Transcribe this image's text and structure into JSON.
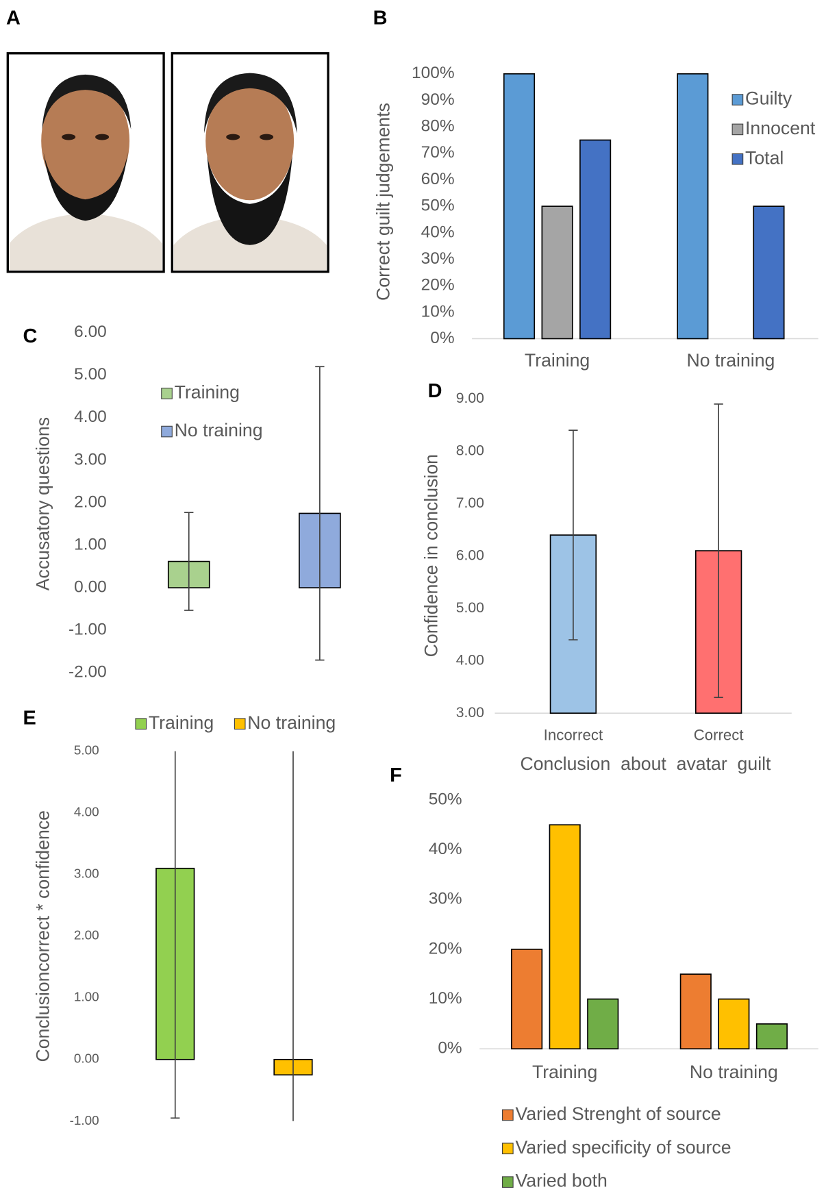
{
  "images": {
    "panel": "A"
  },
  "chart_data": [
    {
      "type": "bar",
      "panel": "B",
      "ylabel": "Correct guilt judgements",
      "categories": [
        "Training",
        "No training"
      ],
      "series": [
        {
          "name": "Guilty",
          "color": "#5b9bd5",
          "values": [
            100,
            100
          ]
        },
        {
          "name": "Innocent",
          "color": "#a5a5a5",
          "values": [
            50,
            0
          ]
        },
        {
          "name": "Total",
          "color": "#4472c4",
          "values": [
            75,
            50
          ]
        }
      ],
      "ylim": [
        0,
        100
      ],
      "yticks": [
        {
          "value": 0,
          "label": "0%"
        },
        {
          "value": 10,
          "label": "10%"
        },
        {
          "value": 20,
          "label": "20%"
        },
        {
          "value": 30,
          "label": "30%"
        },
        {
          "value": 40,
          "label": "40%"
        },
        {
          "value": 50,
          "label": "50%"
        },
        {
          "value": 60,
          "label": "60%"
        },
        {
          "value": 70,
          "label": "70%"
        },
        {
          "value": 80,
          "label": "80%"
        },
        {
          "value": 90,
          "label": "90%"
        },
        {
          "value": 100,
          "label": "100%"
        }
      ]
    },
    {
      "type": "bar",
      "panel": "C",
      "ylabel": "Accusatory questions",
      "series": [
        {
          "name": "Training",
          "color": "#a9d18e",
          "values": [
            0.62
          ],
          "errors": [
            1.15
          ]
        },
        {
          "name": "No training",
          "color": "#8faadc",
          "values": [
            1.75
          ],
          "errors": [
            3.45
          ]
        }
      ],
      "ylim": [
        -2,
        6
      ],
      "yticks": [
        {
          "value": -2,
          "label": "-2.00"
        },
        {
          "value": -1,
          "label": "-1.00"
        },
        {
          "value": 0,
          "label": "0.00"
        },
        {
          "value": 1,
          "label": "1.00"
        },
        {
          "value": 2,
          "label": "2.00"
        },
        {
          "value": 3,
          "label": "3.00"
        },
        {
          "value": 4,
          "label": "4.00"
        },
        {
          "value": 5,
          "label": "5.00"
        },
        {
          "value": 6,
          "label": "6.00"
        }
      ]
    },
    {
      "type": "bar",
      "panel": "D",
      "ylabel": "Confidence in conclusion",
      "xlabel": "Conclusion  about  avatar  guilt",
      "categories": [
        "Incorrect",
        "Correct"
      ],
      "values": [
        6.4,
        6.1
      ],
      "errors": [
        2.0,
        2.8
      ],
      "colors": [
        "#9dc3e6",
        "#ff7070"
      ],
      "ylim": [
        3,
        9
      ],
      "yticks": [
        {
          "value": 3,
          "label": "3.00"
        },
        {
          "value": 4,
          "label": "4.00"
        },
        {
          "value": 5,
          "label": "5.00"
        },
        {
          "value": 6,
          "label": "6.00"
        },
        {
          "value": 7,
          "label": "7.00"
        },
        {
          "value": 8,
          "label": "8.00"
        },
        {
          "value": 9,
          "label": "9.00"
        }
      ]
    },
    {
      "type": "bar",
      "panel": "E",
      "ylabel": "Conclusioncorrect * confidence",
      "series": [
        {
          "name": "Training",
          "color": "#92d050",
          "values": [
            3.1
          ],
          "errors": [
            4.05
          ]
        },
        {
          "name": "No training",
          "color": "#ffc000",
          "values": [
            -0.25
          ],
          "errors": [
            5.25
          ]
        }
      ],
      "ylim": [
        -1,
        5
      ],
      "yticks": [
        {
          "value": -1,
          "label": "-1.00"
        },
        {
          "value": 0,
          "label": "0.00"
        },
        {
          "value": 1,
          "label": "1.00"
        },
        {
          "value": 2,
          "label": "2.00"
        },
        {
          "value": 3,
          "label": "3.00"
        },
        {
          "value": 4,
          "label": "4.00"
        },
        {
          "value": 5,
          "label": "5.00"
        }
      ]
    },
    {
      "type": "bar",
      "panel": "F",
      "categories": [
        "Training",
        "No training"
      ],
      "series": [
        {
          "name": "Varied Strenght of source",
          "color": "#ed7d31",
          "values": [
            20,
            15
          ]
        },
        {
          "name": "Varied specificity of source",
          "color": "#ffc000",
          "values": [
            45,
            10
          ]
        },
        {
          "name": "Varied both",
          "color": "#70ad47",
          "values": [
            10,
            5
          ]
        }
      ],
      "ylim": [
        0,
        50
      ],
      "yticks": [
        {
          "value": 0,
          "label": "0%"
        },
        {
          "value": 10,
          "label": "10%"
        },
        {
          "value": 20,
          "label": "20%"
        },
        {
          "value": 30,
          "label": "30%"
        },
        {
          "value": 40,
          "label": "40%"
        },
        {
          "value": 50,
          "label": "50%"
        }
      ]
    }
  ]
}
